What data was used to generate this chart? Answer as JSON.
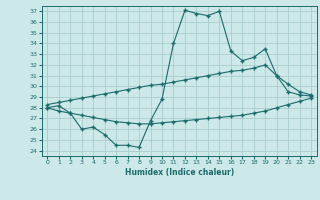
{
  "xlabel": "Humidex (Indice chaleur)",
  "bg_color": "#cce8e8",
  "grid_color": "#aacccc",
  "line_color": "#1a6b6b",
  "xlim": [
    -0.5,
    23.5
  ],
  "ylim": [
    23.5,
    37.5
  ],
  "xticks": [
    0,
    1,
    2,
    3,
    4,
    5,
    6,
    7,
    8,
    9,
    10,
    11,
    12,
    13,
    14,
    15,
    16,
    17,
    18,
    19,
    20,
    21,
    22,
    23
  ],
  "yticks": [
    24,
    25,
    26,
    27,
    28,
    29,
    30,
    31,
    32,
    33,
    34,
    35,
    36,
    37
  ],
  "line1_x": [
    0,
    1,
    2,
    3,
    4,
    5,
    6,
    7,
    8,
    9,
    10,
    11,
    12,
    13,
    14,
    15,
    16,
    17,
    18,
    19,
    20,
    21,
    22,
    23
  ],
  "line1_y": [
    28.0,
    28.2,
    27.5,
    26.0,
    26.2,
    25.5,
    24.5,
    24.5,
    24.3,
    26.8,
    28.8,
    34.0,
    37.1,
    36.8,
    36.6,
    37.0,
    33.3,
    32.4,
    32.7,
    33.5,
    31.0,
    29.5,
    29.2,
    29.1
  ],
  "line2_x": [
    0,
    1,
    2,
    3,
    4,
    5,
    6,
    7,
    8,
    9,
    10,
    11,
    12,
    13,
    14,
    15,
    16,
    17,
    18,
    19,
    20,
    21,
    22,
    23
  ],
  "line2_y": [
    28.3,
    28.5,
    28.7,
    28.9,
    29.1,
    29.3,
    29.5,
    29.7,
    29.9,
    30.1,
    30.2,
    30.4,
    30.6,
    30.8,
    31.0,
    31.2,
    31.4,
    31.5,
    31.7,
    32.0,
    31.0,
    30.2,
    29.5,
    29.2
  ],
  "line3_x": [
    0,
    1,
    2,
    3,
    4,
    5,
    6,
    7,
    8,
    9,
    10,
    11,
    12,
    13,
    14,
    15,
    16,
    17,
    18,
    19,
    20,
    21,
    22,
    23
  ],
  "line3_y": [
    28.0,
    27.7,
    27.5,
    27.3,
    27.1,
    26.9,
    26.7,
    26.6,
    26.5,
    26.5,
    26.6,
    26.7,
    26.8,
    26.9,
    27.0,
    27.1,
    27.2,
    27.3,
    27.5,
    27.7,
    28.0,
    28.3,
    28.6,
    28.9
  ]
}
